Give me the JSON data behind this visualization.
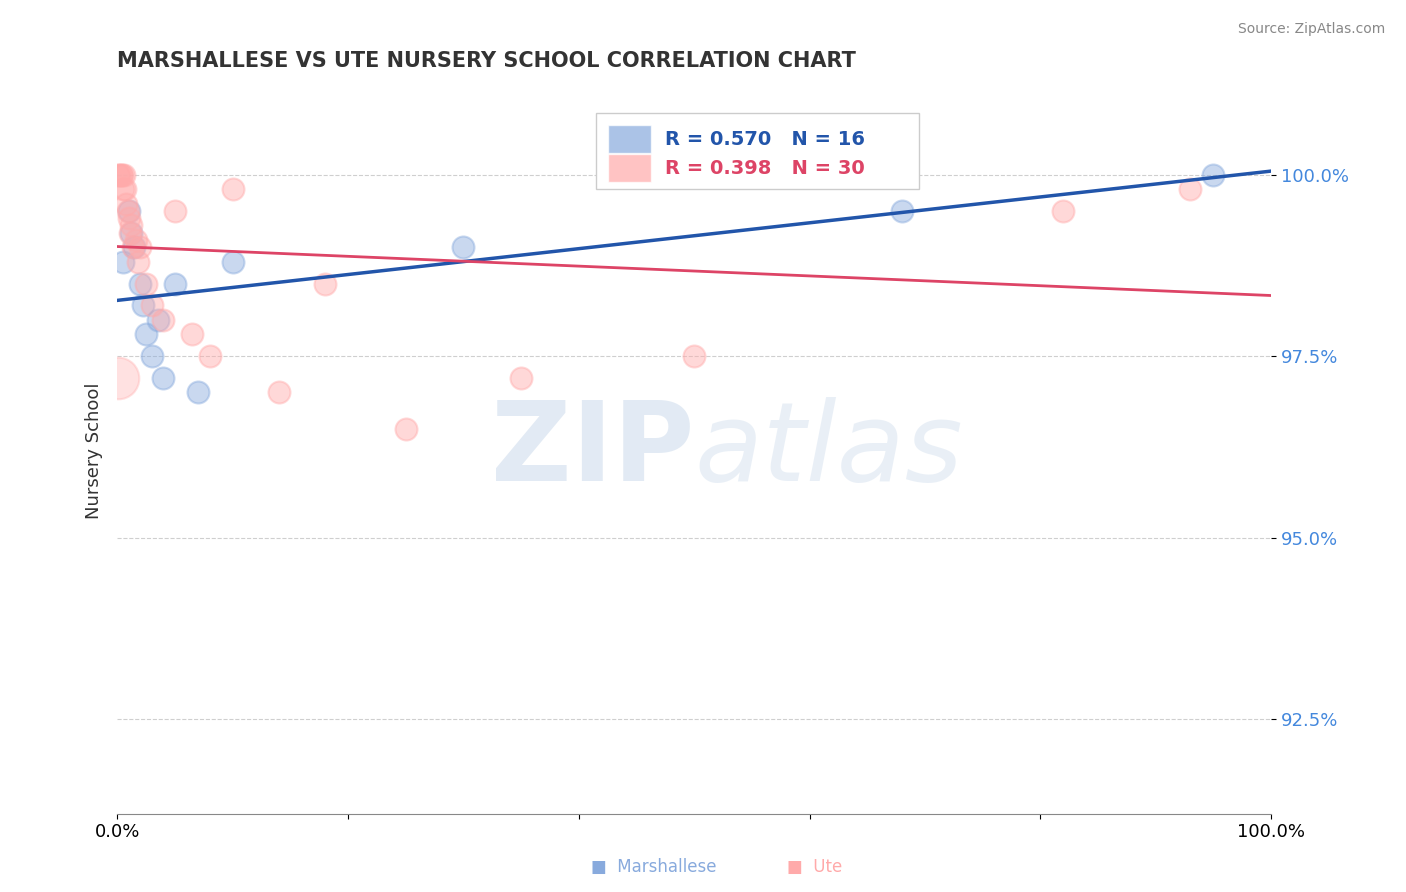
{
  "title": "MARSHALLESE VS UTE NURSERY SCHOOL CORRELATION CHART",
  "source": "Source: ZipAtlas.com",
  "ylabel": "Nursery School",
  "yticks": [
    92.5,
    95.0,
    97.5,
    100.0
  ],
  "ytick_labels": [
    "92.5%",
    "95.0%",
    "97.5%",
    "100.0%"
  ],
  "xlim": [
    0.0,
    100.0
  ],
  "ylim": [
    91.2,
    101.2
  ],
  "blue_color": "#88aadd",
  "pink_color": "#ffaaaa",
  "blue_line_color": "#2255aa",
  "pink_line_color": "#dd4466",
  "legend_blue_R": "R = 0.570",
  "legend_blue_N": "N = 16",
  "legend_pink_R": "R = 0.398",
  "legend_pink_N": "N = 30",
  "blue_points_x": [
    0.5,
    1.0,
    1.2,
    1.5,
    2.0,
    2.2,
    2.5,
    3.0,
    3.5,
    4.0,
    5.0,
    7.0,
    10.0,
    30.0,
    68.0,
    95.0
  ],
  "blue_points_y": [
    98.8,
    99.5,
    99.2,
    99.0,
    98.5,
    98.2,
    97.8,
    97.5,
    98.0,
    97.2,
    98.5,
    97.0,
    98.8,
    99.0,
    99.5,
    100.0
  ],
  "pink_points_x": [
    0.1,
    0.2,
    0.3,
    0.4,
    0.5,
    0.6,
    0.7,
    0.8,
    0.9,
    1.0,
    1.1,
    1.2,
    1.4,
    1.6,
    1.8,
    2.0,
    2.5,
    3.0,
    4.0,
    5.0,
    6.5,
    8.0,
    10.0,
    14.0,
    18.0,
    25.0,
    35.0,
    50.0,
    82.0,
    93.0
  ],
  "pink_points_y": [
    100.0,
    100.0,
    100.0,
    100.0,
    99.8,
    100.0,
    99.8,
    99.6,
    99.5,
    99.4,
    99.2,
    99.3,
    99.0,
    99.1,
    98.8,
    99.0,
    98.5,
    98.2,
    98.0,
    99.5,
    97.8,
    97.5,
    99.8,
    97.0,
    98.5,
    96.5,
    97.2,
    97.5,
    99.5,
    99.8
  ],
  "pink_large_point_x": 0.0,
  "pink_large_point_y": 97.2,
  "watermark_zip": "ZIP",
  "watermark_atlas": "atlas",
  "grid_color": "#bbbbbb",
  "tick_label_color": "#4488dd",
  "background_color": "#ffffff"
}
